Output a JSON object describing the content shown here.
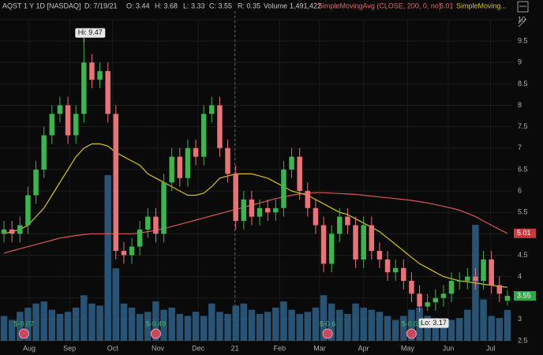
{
  "chart_data": {
    "type": "candlestick",
    "header": [
      "AQST 1 Y 1D [NASDAQ]",
      "D: 7/19/21",
      "O: 3.44",
      "H: 3.68",
      "L: 3.33",
      "C: 3.55",
      "R: 0.35",
      "Volume",
      "1,491,422"
    ],
    "open": [
      5.0,
      5.1,
      5.0,
      5.2,
      5.9,
      6.5,
      7.3,
      7.8,
      8.0,
      7.3,
      7.8,
      9.0,
      8.6,
      8.8,
      7.8,
      4.6,
      4.5,
      4.7,
      5.1,
      5.4,
      5.0,
      6.2,
      6.8,
      6.3,
      7.0,
      6.8,
      7.8,
      8.0,
      7.0,
      6.4,
      5.3,
      5.8,
      5.4,
      5.6,
      5.5,
      5.6,
      6.5,
      6.8,
      6.0,
      5.6,
      5.2,
      4.3,
      5.0,
      5.4,
      5.2,
      4.4,
      5.2,
      4.6,
      4.4,
      4.1,
      4.2,
      3.9,
      3.6,
      3.3,
      3.4,
      3.5,
      3.6,
      3.9,
      3.9,
      4.0,
      3.9,
      4.4,
      3.8,
      3.44
    ],
    "high": [
      5.3,
      5.3,
      5.4,
      6.1,
      6.7,
      7.5,
      8.0,
      8.2,
      8.2,
      8.0,
      9.47,
      9.2,
      9.0,
      9.0,
      8.0,
      4.8,
      4.9,
      5.3,
      5.6,
      5.6,
      6.4,
      7.0,
      7.0,
      7.2,
      7.2,
      8.0,
      8.2,
      8.2,
      7.2,
      6.6,
      6.0,
      6.0,
      5.8,
      5.8,
      5.8,
      6.7,
      7.0,
      7.0,
      6.2,
      5.8,
      5.4,
      5.2,
      5.6,
      5.6,
      5.4,
      5.4,
      5.4,
      4.8,
      4.6,
      4.4,
      4.4,
      4.1,
      3.8,
      3.6,
      3.7,
      3.8,
      4.1,
      4.1,
      4.2,
      4.2,
      4.6,
      4.6,
      4.0,
      3.68
    ],
    "low": [
      4.8,
      4.8,
      4.8,
      5.0,
      5.7,
      6.3,
      7.1,
      7.6,
      7.1,
      7.1,
      7.6,
      8.4,
      8.4,
      7.6,
      4.4,
      4.3,
      4.3,
      4.5,
      4.9,
      4.8,
      4.8,
      6.0,
      6.1,
      6.1,
      6.6,
      6.6,
      7.6,
      6.8,
      6.2,
      5.1,
      5.1,
      5.2,
      5.2,
      5.3,
      5.3,
      5.4,
      6.3,
      5.8,
      5.4,
      5.0,
      4.1,
      4.1,
      4.8,
      5.0,
      4.2,
      4.2,
      4.4,
      4.2,
      3.9,
      3.9,
      3.7,
      3.4,
      3.17,
      3.2,
      3.2,
      3.3,
      3.4,
      3.7,
      3.7,
      3.7,
      3.7,
      3.6,
      3.4,
      3.33
    ],
    "close": [
      5.1,
      5.0,
      5.2,
      5.9,
      6.5,
      7.3,
      7.8,
      8.0,
      7.3,
      7.8,
      9.0,
      8.6,
      8.8,
      7.8,
      4.6,
      4.5,
      4.7,
      5.1,
      5.4,
      5.0,
      6.2,
      6.8,
      6.3,
      7.0,
      6.8,
      7.8,
      8.0,
      7.0,
      6.4,
      5.3,
      5.8,
      5.4,
      5.6,
      5.5,
      5.6,
      6.5,
      6.8,
      6.0,
      5.6,
      5.2,
      4.3,
      5.0,
      5.4,
      5.2,
      4.4,
      5.2,
      4.6,
      4.4,
      4.1,
      4.2,
      3.9,
      3.6,
      3.3,
      3.4,
      3.5,
      3.6,
      3.9,
      3.9,
      4.0,
      3.9,
      4.4,
      3.8,
      3.6,
      3.55
    ],
    "volume": [
      1200000,
      1000000,
      1400000,
      1600000,
      1800000,
      1900000,
      1500000,
      1300000,
      1400000,
      1600000,
      2200000,
      1800000,
      1700000,
      8000000,
      3500000,
      1800000,
      1600000,
      1300000,
      1400000,
      1900000,
      1500000,
      1600000,
      1300000,
      1200000,
      1400000,
      1200000,
      1800000,
      1400000,
      1300000,
      1700000,
      1800000,
      1500000,
      1300000,
      1400000,
      1600000,
      1900000,
      1500000,
      1300000,
      1400000,
      1600000,
      2200000,
      1800000,
      1500000,
      1300000,
      1800000,
      1600000,
      1500000,
      1400000,
      1200000,
      1000000,
      1200000,
      1500000,
      1600000,
      1200000,
      1100000,
      1000000,
      1000000,
      1100000,
      1500000,
      5600000,
      2000000,
      1200000,
      1100000,
      1491422
    ],
    "up_color": "#3fb34f",
    "down_color": "#e8747a",
    "volume_color": "#2b5b80",
    "series": [
      {
        "name": "SimpleMovingAvg (CLOSE, 200, 0, no)",
        "color": "#d9575b",
        "values": [
          4.55,
          4.6,
          4.65,
          4.7,
          4.75,
          4.8,
          4.85,
          4.9,
          4.93,
          4.96,
          4.98,
          5.0,
          5.0,
          5.0,
          5.0,
          5.0,
          5.0,
          5.02,
          5.05,
          5.08,
          5.12,
          5.17,
          5.22,
          5.27,
          5.32,
          5.37,
          5.42,
          5.47,
          5.52,
          5.57,
          5.62,
          5.67,
          5.72,
          5.77,
          5.82,
          5.86,
          5.9,
          5.93,
          5.95,
          5.96,
          5.96,
          5.95,
          5.94,
          5.93,
          5.92,
          5.9,
          5.88,
          5.86,
          5.84,
          5.82,
          5.8,
          5.78,
          5.75,
          5.72,
          5.68,
          5.64,
          5.6,
          5.55,
          5.48,
          5.4,
          5.3,
          5.2,
          5.1,
          5.01
        ]
      },
      {
        "name": "SimpleMoving...",
        "color": "#d8c41e",
        "values": [
          5.0,
          5.05,
          5.1,
          5.2,
          5.4,
          5.6,
          5.9,
          6.2,
          6.5,
          6.8,
          7.0,
          7.1,
          7.1,
          7.05,
          6.9,
          6.8,
          6.7,
          6.6,
          6.4,
          6.3,
          6.2,
          6.1,
          6.0,
          5.9,
          5.9,
          5.95,
          6.1,
          6.3,
          6.35,
          6.4,
          6.4,
          6.4,
          6.35,
          6.3,
          6.2,
          6.1,
          6.0,
          5.95,
          5.9,
          5.8,
          5.7,
          5.6,
          5.5,
          5.45,
          5.35,
          5.25,
          5.15,
          5.05,
          4.9,
          4.75,
          4.6,
          4.45,
          4.3,
          4.2,
          4.1,
          4.0,
          3.95,
          3.9,
          3.88,
          3.85,
          3.82,
          3.8,
          3.77,
          3.75
        ]
      }
    ],
    "ylim": [
      2.5,
      10
    ],
    "yticks": [
      2.5,
      3,
      3.5,
      4,
      4.5,
      5,
      5.5,
      6,
      6.5,
      7,
      7.5,
      8,
      8.5,
      9,
      9.5,
      10
    ],
    "xticks": [
      {
        "value": 3.15,
        "label": "Aug"
      },
      {
        "value": 8.2,
        "label": "Sep"
      },
      {
        "value": 13.6,
        "label": "Oct"
      },
      {
        "value": 19.25,
        "label": "Nov"
      },
      {
        "value": 24.3,
        "label": "Dec"
      },
      {
        "value": 28.9,
        "label": "21"
      },
      {
        "value": 34.5,
        "label": "Feb"
      },
      {
        "value": 39.5,
        "label": "Mar"
      },
      {
        "value": 45.0,
        "label": "Apr"
      },
      {
        "value": 50.5,
        "label": "May"
      },
      {
        "value": 55.6,
        "label": "Jun"
      },
      {
        "value": 60.9,
        "label": "Jul"
      }
    ],
    "high_label": "Hi: 9.47",
    "low_label": "Lo: 3.17",
    "earnings": [
      {
        "x": 2.5,
        "label": "$-0.07"
      },
      {
        "x": 19,
        "label": "$-0.49"
      },
      {
        "x": 40.5,
        "label": "$-0.6"
      },
      {
        "x": 51,
        "label": "$-0.62"
      }
    ]
  }
}
